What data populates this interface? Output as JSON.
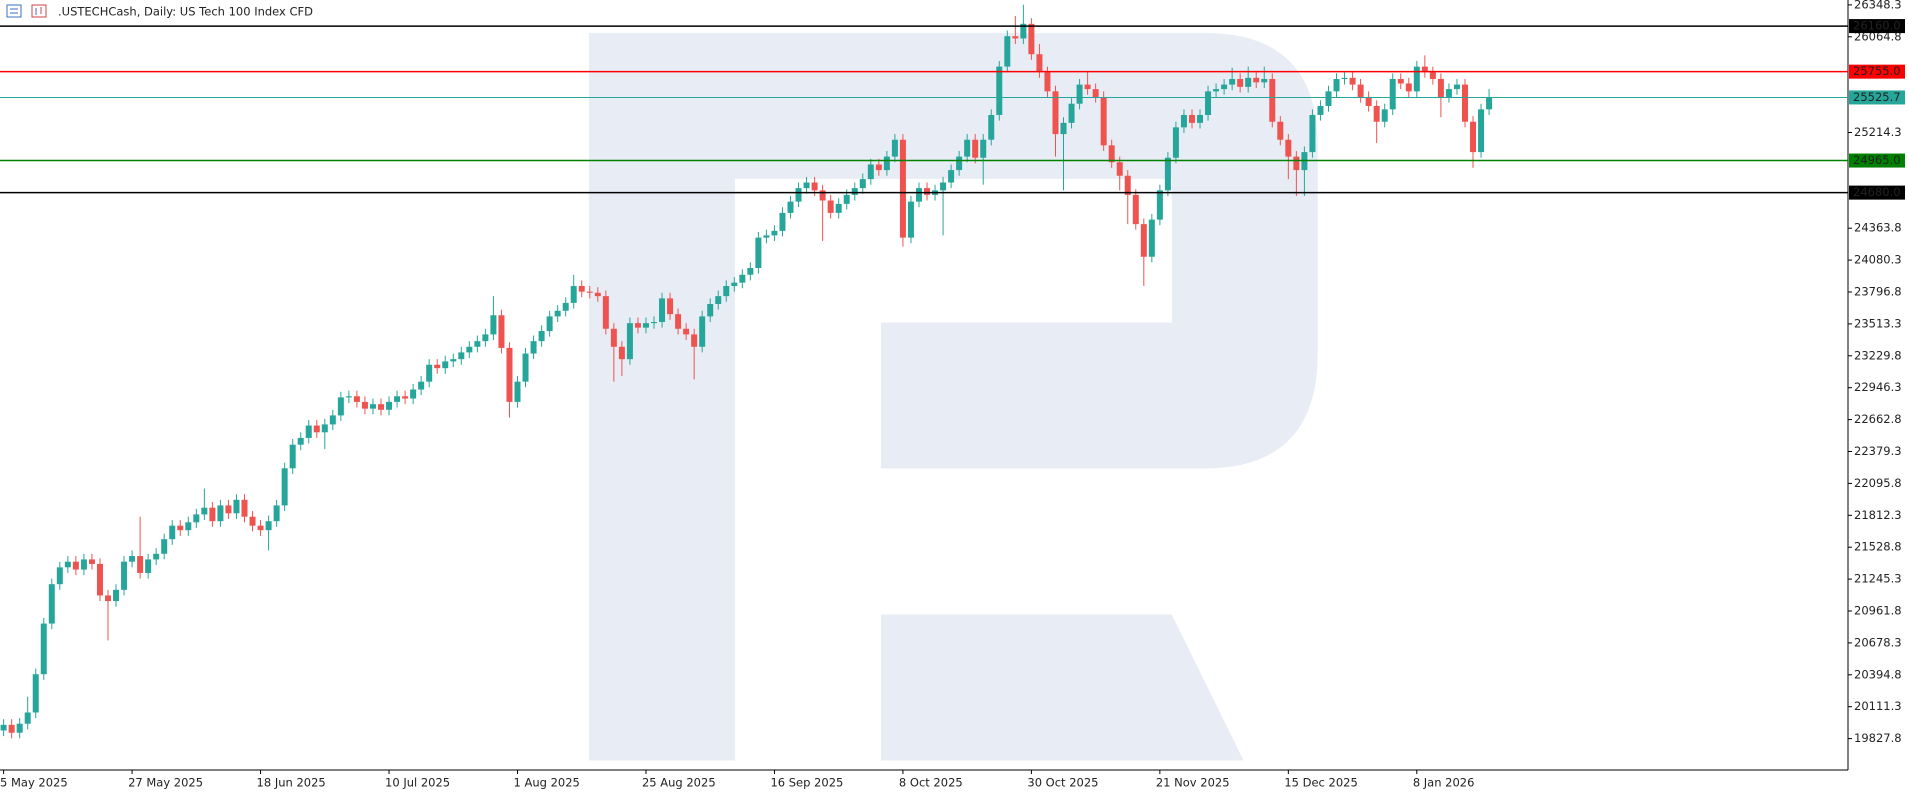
{
  "chart_data": {
    "type": "candlestick",
    "title": ".USTECHCash, Daily:  US Tech 100 Index CFD",
    "up_color": "#26a69a",
    "down_color": "#ef5350",
    "xlim": [
      -0.45,
      229.7
    ],
    "xticks": [
      {
        "value": 0,
        "label": "5 May 2025"
      },
      {
        "value": 16,
        "label": "27 May 2025"
      },
      {
        "value": 32,
        "label": "18 Jun 2025"
      },
      {
        "value": 48,
        "label": "10 Jul 2025"
      },
      {
        "value": 64,
        "label": "1 Aug 2025"
      },
      {
        "value": 80,
        "label": "25 Aug 2025"
      },
      {
        "value": 96,
        "label": "16 Sep 2025"
      },
      {
        "value": 112,
        "label": "8 Oct 2025"
      },
      {
        "value": 128,
        "label": "30 Oct 2025"
      },
      {
        "value": 144,
        "label": "21 Nov 2025"
      },
      {
        "value": 160,
        "label": "15 Dec 2025"
      },
      {
        "value": 176,
        "label": "8 Jan 2026"
      }
    ],
    "ylim": [
      19548.7,
      26391.8
    ],
    "yticks": [
      26348.3,
      26064.8,
      25214.3,
      24363.8,
      24080.3,
      23796.8,
      23513.3,
      23229.8,
      22946.3,
      22662.8,
      22379.3,
      22095.8,
      21812.3,
      21528.8,
      21245.3,
      20961.8,
      20678.3,
      20394.8,
      20111.3,
      19827.8
    ],
    "levels": [
      {
        "value": 26160.0,
        "label": "26160.0",
        "color": "#000000"
      },
      {
        "value": 25755.0,
        "label": "25755.0",
        "color": "#ff0000"
      },
      {
        "value": 25525.7,
        "label": "25525.7",
        "color": "#26a69a"
      },
      {
        "value": 24965.0,
        "label": "24965.0",
        "color": "#008000"
      },
      {
        "value": 24680.0,
        "label": "24680.0",
        "color": "#000000"
      }
    ],
    "open": [
      19900,
      19950,
      19880,
      19960,
      20060,
      20400,
      20850,
      21200,
      21350,
      21400,
      21330,
      21420,
      21380,
      21100,
      21050,
      21150,
      21400,
      21450,
      21300,
      21420,
      21470,
      21600,
      21720,
      21680,
      21750,
      21820,
      21880,
      21760,
      21900,
      21830,
      21950,
      21800,
      21720,
      21680,
      21760,
      21900,
      22230,
      22440,
      22500,
      22610,
      22550,
      22620,
      22700,
      22860,
      22870,
      22820,
      22760,
      22800,
      22750,
      22820,
      22870,
      22850,
      22930,
      23000,
      23150,
      23120,
      23180,
      23200,
      23260,
      23310,
      23360,
      23420,
      23590,
      23300,
      22820,
      23000,
      23250,
      23360,
      23450,
      23580,
      23630,
      23700,
      23850,
      23800,
      23790,
      23760,
      23470,
      23310,
      23200,
      23520,
      23480,
      23520,
      23530,
      23740,
      23600,
      23470,
      23420,
      23310,
      23580,
      23690,
      23760,
      23850,
      23880,
      23950,
      24010,
      24280,
      24300,
      24340,
      24500,
      24600,
      24720,
      24770,
      24700,
      24610,
      24500,
      24580,
      24660,
      24720,
      24800,
      24930,
      24880,
      25000,
      25150,
      24280,
      24600,
      24720,
      24660,
      24700,
      24770,
      24880,
      25000,
      25150,
      24990,
      25150,
      25370,
      25800,
      26070,
      26050,
      26180,
      25910,
      25750,
      25580,
      25200,
      25300,
      25470,
      25640,
      25600,
      25530,
      25100,
      24950,
      24830,
      24660,
      24400,
      24110,
      24440,
      24700,
      24990,
      25260,
      25370,
      25300,
      25370,
      25580,
      25600,
      25640,
      25690,
      25620,
      25700,
      25660,
      25690,
      25310,
      25150,
      25000,
      24880,
      25040,
      25370,
      25450,
      25580,
      25690,
      25700,
      25640,
      25530,
      25450,
      25310,
      25420,
      25690,
      25650,
      25580,
      25800,
      25750,
      25690,
      25530,
      25600,
      25640,
      25310,
      25040,
      25420
    ],
    "high": [
      20000,
      20000,
      20010,
      20200,
      20450,
      20900,
      21250,
      21400,
      21450,
      21450,
      21470,
      21470,
      21430,
      21150,
      21200,
      21450,
      21500,
      21800,
      21470,
      21520,
      21650,
      21770,
      21770,
      21800,
      21870,
      22050,
      21930,
      21950,
      21950,
      22000,
      22000,
      21850,
      21770,
      21810,
      21950,
      22280,
      22490,
      22550,
      22660,
      22660,
      22670,
      22750,
      22910,
      22920,
      22920,
      22870,
      22850,
      22850,
      22870,
      22920,
      22920,
      22980,
      23050,
      23200,
      23200,
      23230,
      23250,
      23310,
      23360,
      23410,
      23470,
      23760,
      23640,
      23350,
      23050,
      23300,
      23410,
      23500,
      23630,
      23680,
      23750,
      23950,
      23900,
      23850,
      23840,
      23810,
      23520,
      23360,
      23570,
      23570,
      23570,
      23580,
      23790,
      23790,
      23650,
      23520,
      23470,
      23630,
      23740,
      23810,
      23900,
      23930,
      24000,
      24060,
      24330,
      24350,
      24390,
      24550,
      24650,
      24770,
      24820,
      24820,
      24750,
      24660,
      24630,
      24710,
      24770,
      24850,
      24980,
      24980,
      25050,
      25200,
      25200,
      24650,
      24770,
      24770,
      24750,
      24820,
      24930,
      25050,
      25200,
      25200,
      25200,
      25420,
      25850,
      26120,
      26250,
      26350,
      26230,
      26000,
      25800,
      25630,
      25350,
      25520,
      25690,
      25750,
      25650,
      25580,
      25150,
      25000,
      24880,
      24710,
      24450,
      24490,
      24750,
      25040,
      25310,
      25420,
      25420,
      25420,
      25630,
      25650,
      25690,
      25790,
      25740,
      25800,
      25750,
      25800,
      25740,
      25360,
      25200,
      25050,
      25090,
      25420,
      25500,
      25630,
      25740,
      25750,
      25750,
      25690,
      25580,
      25500,
      25470,
      25740,
      25740,
      25700,
      25850,
      25900,
      25800,
      25740,
      25650,
      25690,
      25690,
      25360,
      25470,
      25600
    ],
    "low": [
      19850,
      19830,
      19830,
      19910,
      20010,
      20350,
      20800,
      21150,
      21300,
      21280,
      21280,
      21330,
      21050,
      20700,
      21000,
      21100,
      21350,
      21250,
      21250,
      21370,
      21420,
      21550,
      21630,
      21630,
      21700,
      21770,
      21710,
      21710,
      21780,
      21780,
      21750,
      21670,
      21630,
      21500,
      21710,
      21850,
      22180,
      22390,
      22450,
      22500,
      22400,
      22570,
      22650,
      22810,
      22770,
      22710,
      22710,
      22700,
      22700,
      22770,
      22800,
      22800,
      22880,
      22950,
      23070,
      23070,
      23130,
      23150,
      23210,
      23260,
      23310,
      23370,
      23250,
      22680,
      22770,
      22950,
      23200,
      23310,
      23400,
      23530,
      23580,
      23650,
      23750,
      23740,
      23710,
      23420,
      23000,
      23050,
      23150,
      23430,
      23430,
      23470,
      23480,
      23550,
      23420,
      23370,
      23020,
      23260,
      23530,
      23640,
      23710,
      23800,
      23830,
      23900,
      23960,
      24230,
      24250,
      24290,
      24450,
      24550,
      24670,
      24650,
      24250,
      24450,
      24450,
      24530,
      24610,
      24670,
      24750,
      24830,
      24830,
      24950,
      24200,
      24230,
      24550,
      24610,
      24610,
      24300,
      24720,
      24830,
      24950,
      24940,
      24750,
      25100,
      25320,
      25750,
      26000,
      26000,
      25860,
      25700,
      25530,
      25000,
      24700,
      25250,
      25420,
      25550,
      25480,
      25050,
      24900,
      24700,
      24400,
      24350,
      23850,
      24060,
      24390,
      24650,
      24940,
      25210,
      25250,
      25250,
      25320,
      25530,
      25550,
      25590,
      25570,
      25570,
      25610,
      25610,
      25260,
      25100,
      24800,
      24650,
      24650,
      24990,
      25320,
      25400,
      25530,
      25640,
      25590,
      25480,
      25400,
      25120,
      25260,
      25370,
      25600,
      25530,
      25530,
      25700,
      25640,
      25350,
      25480,
      25550,
      25260,
      24900,
      24990,
      25370
    ],
    "close": [
      19950,
      19880,
      19960,
      20060,
      20400,
      20850,
      21200,
      21350,
      21400,
      21330,
      21420,
      21380,
      21100,
      21050,
      21150,
      21400,
      21450,
      21300,
      21420,
      21470,
      21600,
      21720,
      21680,
      21750,
      21820,
      21880,
      21760,
      21900,
      21830,
      21950,
      21800,
      21720,
      21680,
      21760,
      21900,
      22230,
      22440,
      22500,
      22610,
      22550,
      22620,
      22700,
      22860,
      22870,
      22820,
      22760,
      22800,
      22750,
      22820,
      22870,
      22850,
      22930,
      23000,
      23150,
      23120,
      23180,
      23200,
      23260,
      23310,
      23360,
      23420,
      23590,
      23300,
      22820,
      23000,
      23250,
      23360,
      23450,
      23580,
      23630,
      23700,
      23850,
      23800,
      23790,
      23760,
      23470,
      23310,
      23200,
      23520,
      23480,
      23520,
      23530,
      23740,
      23600,
      23470,
      23420,
      23310,
      23580,
      23690,
      23760,
      23850,
      23880,
      23950,
      24010,
      24280,
      24300,
      24340,
      24500,
      24600,
      24720,
      24770,
      24700,
      24610,
      24500,
      24580,
      24660,
      24720,
      24800,
      24930,
      24880,
      25000,
      25150,
      24280,
      24600,
      24720,
      24660,
      24700,
      24770,
      24880,
      25000,
      25150,
      24990,
      25150,
      25370,
      25800,
      26070,
      26050,
      26180,
      25910,
      25750,
      25580,
      25200,
      25300,
      25470,
      25640,
      25600,
      25530,
      25100,
      24950,
      24830,
      24660,
      24400,
      24110,
      24440,
      24700,
      24990,
      25260,
      25370,
      25300,
      25370,
      25580,
      25600,
      25640,
      25690,
      25620,
      25700,
      25660,
      25690,
      25310,
      25150,
      25000,
      24880,
      25040,
      25370,
      25450,
      25580,
      25690,
      25700,
      25640,
      25530,
      25450,
      25310,
      25420,
      25690,
      25650,
      25580,
      25800,
      25750,
      25690,
      25530,
      25600,
      25640,
      25310,
      25040,
      25420,
      25530
    ]
  }
}
